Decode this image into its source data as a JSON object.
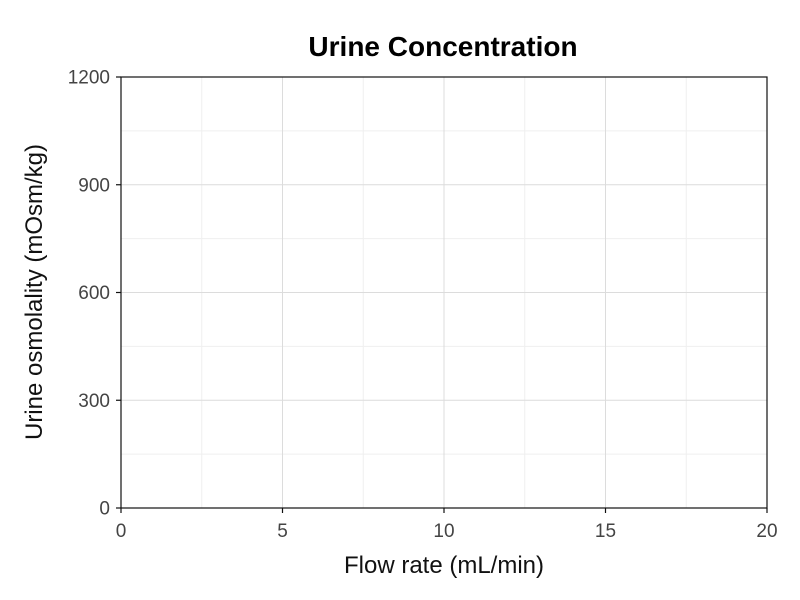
{
  "chart_data": {
    "type": "scatter",
    "title": "Urine Concentration",
    "xlabel": "Flow rate (mL/min)",
    "ylabel": "Urine osmolality (mOsm/kg)",
    "xlim": [
      0,
      20
    ],
    "ylim": [
      0,
      1200
    ],
    "x_ticks": [
      "0",
      "5",
      "10",
      "15",
      "20"
    ],
    "y_ticks": [
      "0",
      "300",
      "600",
      "900",
      "1200"
    ],
    "grid": true,
    "series": [],
    "colors": {
      "background": "#ffffff",
      "grid_major": "#dcdcdc",
      "grid_minor": "#efefef",
      "axis": "#111111"
    }
  }
}
